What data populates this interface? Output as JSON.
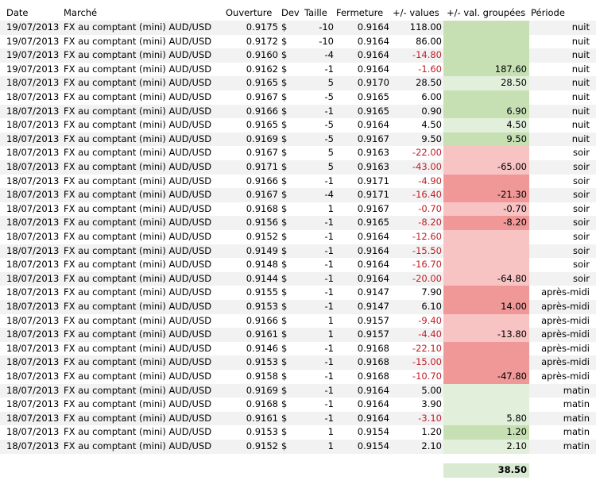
{
  "headers": {
    "date": "Date",
    "market": "Marché",
    "open": "Ouverture",
    "dev": "Dev",
    "size": "Taille",
    "close": "Fermeture",
    "value": "+/- values",
    "grouped": "+/- val. groupées",
    "period": "Période"
  },
  "colors": {
    "light_green": "#e2efda",
    "green": "#c6e0b4",
    "light_red": "#f8c3c3",
    "red": "#f09898"
  },
  "rows": [
    {
      "date": "19/07/2013",
      "market": "FX au comptant  (mini) AUD/USD",
      "open": "0.9175",
      "dev": "$",
      "size": "-10",
      "close": "0.9164",
      "value": "118.00",
      "grouped": "",
      "period": "nuit",
      "neg": false,
      "fill": "green"
    },
    {
      "date": "19/07/2013",
      "market": "FX au comptant  (mini) AUD/USD",
      "open": "0.9172",
      "dev": "$",
      "size": "-10",
      "close": "0.9164",
      "value": "86.00",
      "grouped": "",
      "period": "nuit",
      "neg": false,
      "fill": "green"
    },
    {
      "date": "19/07/2013",
      "market": "FX au comptant  (mini) AUD/USD",
      "open": "0.9160",
      "dev": "$",
      "size": "-4",
      "close": "0.9164",
      "value": "-14.80",
      "grouped": "",
      "period": "nuit",
      "neg": true,
      "fill": "green"
    },
    {
      "date": "19/07/2013",
      "market": "FX au comptant  (mini) AUD/USD",
      "open": "0.9162",
      "dev": "$",
      "size": "-1",
      "close": "0.9164",
      "value": "-1.60",
      "grouped": "187.60",
      "period": "nuit",
      "neg": true,
      "fill": "green"
    },
    {
      "date": "18/07/2013",
      "market": "FX au comptant  (mini) AUD/USD",
      "open": "0.9165",
      "dev": "$",
      "size": "5",
      "close": "0.9170",
      "value": "28.50",
      "grouped": "28.50",
      "period": "nuit",
      "neg": false,
      "fill": "light_green"
    },
    {
      "date": "18/07/2013",
      "market": "FX au comptant  (mini) AUD/USD",
      "open": "0.9167",
      "dev": "$",
      "size": "-5",
      "close": "0.9165",
      "value": "6.00",
      "grouped": "",
      "period": "nuit",
      "neg": false,
      "fill": "green"
    },
    {
      "date": "18/07/2013",
      "market": "FX au comptant  (mini) AUD/USD",
      "open": "0.9166",
      "dev": "$",
      "size": "-1",
      "close": "0.9165",
      "value": "0.90",
      "grouped": "6.90",
      "period": "nuit",
      "neg": false,
      "fill": "green"
    },
    {
      "date": "18/07/2013",
      "market": "FX au comptant  (mini) AUD/USD",
      "open": "0.9165",
      "dev": "$",
      "size": "-5",
      "close": "0.9164",
      "value": "4.50",
      "grouped": "4.50",
      "period": "nuit",
      "neg": false,
      "fill": "light_green"
    },
    {
      "date": "18/07/2013",
      "market": "FX au comptant  (mini) AUD/USD",
      "open": "0.9169",
      "dev": "$",
      "size": "-5",
      "close": "0.9167",
      "value": "9.50",
      "grouped": "9.50",
      "period": "nuit",
      "neg": false,
      "fill": "green"
    },
    {
      "date": "18/07/2013",
      "market": "FX au comptant  (mini) AUD/USD",
      "open": "0.9167",
      "dev": "$",
      "size": "5",
      "close": "0.9163",
      "value": "-22.00",
      "grouped": "",
      "period": "soir",
      "neg": true,
      "fill": "light_red"
    },
    {
      "date": "18/07/2013",
      "market": "FX au comptant  (mini) AUD/USD",
      "open": "0.9171",
      "dev": "$",
      "size": "5",
      "close": "0.9163",
      "value": "-43.00",
      "grouped": "-65.00",
      "period": "soir",
      "neg": true,
      "fill": "light_red"
    },
    {
      "date": "18/07/2013",
      "market": "FX au comptant  (mini) AUD/USD",
      "open": "0.9166",
      "dev": "$",
      "size": "-1",
      "close": "0.9171",
      "value": "-4.90",
      "grouped": "",
      "period": "soir",
      "neg": true,
      "fill": "red"
    },
    {
      "date": "18/07/2013",
      "market": "FX au comptant  (mini) AUD/USD",
      "open": "0.9167",
      "dev": "$",
      "size": "-4",
      "close": "0.9171",
      "value": "-16.40",
      "grouped": "-21.30",
      "period": "soir",
      "neg": true,
      "fill": "red"
    },
    {
      "date": "18/07/2013",
      "market": "FX au comptant  (mini) AUD/USD",
      "open": "0.9168",
      "dev": "$",
      "size": "1",
      "close": "0.9167",
      "value": "-0.70",
      "grouped": "-0.70",
      "period": "soir",
      "neg": true,
      "fill": "light_red"
    },
    {
      "date": "18/07/2013",
      "market": "FX au comptant  (mini) AUD/USD",
      "open": "0.9156",
      "dev": "$",
      "size": "-1",
      "close": "0.9165",
      "value": "-8.20",
      "grouped": "-8.20",
      "period": "soir",
      "neg": true,
      "fill": "red"
    },
    {
      "date": "18/07/2013",
      "market": "FX au comptant  (mini) AUD/USD",
      "open": "0.9152",
      "dev": "$",
      "size": "-1",
      "close": "0.9164",
      "value": "-12.60",
      "grouped": "",
      "period": "soir",
      "neg": true,
      "fill": "light_red"
    },
    {
      "date": "18/07/2013",
      "market": "FX au comptant  (mini) AUD/USD",
      "open": "0.9149",
      "dev": "$",
      "size": "-1",
      "close": "0.9164",
      "value": "-15.50",
      "grouped": "",
      "period": "soir",
      "neg": true,
      "fill": "light_red"
    },
    {
      "date": "18/07/2013",
      "market": "FX au comptant  (mini) AUD/USD",
      "open": "0.9148",
      "dev": "$",
      "size": "-1",
      "close": "0.9164",
      "value": "-16.70",
      "grouped": "",
      "period": "soir",
      "neg": true,
      "fill": "light_red"
    },
    {
      "date": "18/07/2013",
      "market": "FX au comptant  (mini) AUD/USD",
      "open": "0.9144",
      "dev": "$",
      "size": "-1",
      "close": "0.9164",
      "value": "-20.00",
      "grouped": "-64.80",
      "period": "soir",
      "neg": true,
      "fill": "light_red"
    },
    {
      "date": "18/07/2013",
      "market": "FX au comptant  (mini) AUD/USD",
      "open": "0.9155",
      "dev": "$",
      "size": "-1",
      "close": "0.9147",
      "value": "7.90",
      "grouped": "",
      "period": "après-midi",
      "neg": false,
      "fill": "red"
    },
    {
      "date": "18/07/2013",
      "market": "FX au comptant  (mini) AUD/USD",
      "open": "0.9153",
      "dev": "$",
      "size": "-1",
      "close": "0.9147",
      "value": "6.10",
      "grouped": "14.00",
      "period": "après-midi",
      "neg": false,
      "fill": "red"
    },
    {
      "date": "18/07/2013",
      "market": "FX au comptant  (mini) AUD/USD",
      "open": "0.9166",
      "dev": "$",
      "size": "1",
      "close": "0.9157",
      "value": "-9.40",
      "grouped": "",
      "period": "après-midi",
      "neg": true,
      "fill": "light_red"
    },
    {
      "date": "18/07/2013",
      "market": "FX au comptant  (mini) AUD/USD",
      "open": "0.9161",
      "dev": "$",
      "size": "1",
      "close": "0.9157",
      "value": "-4.40",
      "grouped": "-13.80",
      "period": "après-midi",
      "neg": true,
      "fill": "light_red"
    },
    {
      "date": "18/07/2013",
      "market": "FX au comptant  (mini) AUD/USD",
      "open": "0.9146",
      "dev": "$",
      "size": "-1",
      "close": "0.9168",
      "value": "-22.10",
      "grouped": "",
      "period": "après-midi",
      "neg": true,
      "fill": "red"
    },
    {
      "date": "18/07/2013",
      "market": "FX au comptant  (mini) AUD/USD",
      "open": "0.9153",
      "dev": "$",
      "size": "-1",
      "close": "0.9168",
      "value": "-15.00",
      "grouped": "",
      "period": "après-midi",
      "neg": true,
      "fill": "red"
    },
    {
      "date": "18/07/2013",
      "market": "FX au comptant  (mini) AUD/USD",
      "open": "0.9158",
      "dev": "$",
      "size": "-1",
      "close": "0.9168",
      "value": "-10.70",
      "grouped": "-47.80",
      "period": "après-midi",
      "neg": true,
      "fill": "red"
    },
    {
      "date": "18/07/2013",
      "market": "FX au comptant  (mini) AUD/USD",
      "open": "0.9169",
      "dev": "$",
      "size": "-1",
      "close": "0.9164",
      "value": "5.00",
      "grouped": "",
      "period": "matin",
      "neg": false,
      "fill": "light_green"
    },
    {
      "date": "18/07/2013",
      "market": "FX au comptant  (mini) AUD/USD",
      "open": "0.9168",
      "dev": "$",
      "size": "-1",
      "close": "0.9164",
      "value": "3.90",
      "grouped": "",
      "period": "matin",
      "neg": false,
      "fill": "light_green"
    },
    {
      "date": "18/07/2013",
      "market": "FX au comptant  (mini) AUD/USD",
      "open": "0.9161",
      "dev": "$",
      "size": "-1",
      "close": "0.9164",
      "value": "-3.10",
      "grouped": "5.80",
      "period": "matin",
      "neg": true,
      "fill": "light_green"
    },
    {
      "date": "18/07/2013",
      "market": "FX au comptant  (mini) AUD/USD",
      "open": "0.9153",
      "dev": "$",
      "size": "1",
      "close": "0.9154",
      "value": "1.20",
      "grouped": "1.20",
      "period": "matin",
      "neg": false,
      "fill": "green"
    },
    {
      "date": "18/07/2013",
      "market": "FX au comptant  (mini) AUD/USD",
      "open": "0.9152",
      "dev": "$",
      "size": "1",
      "close": "0.9154",
      "value": "2.10",
      "grouped": "2.10",
      "period": "matin",
      "neg": false,
      "fill": "light_green"
    }
  ],
  "total": "38.50"
}
